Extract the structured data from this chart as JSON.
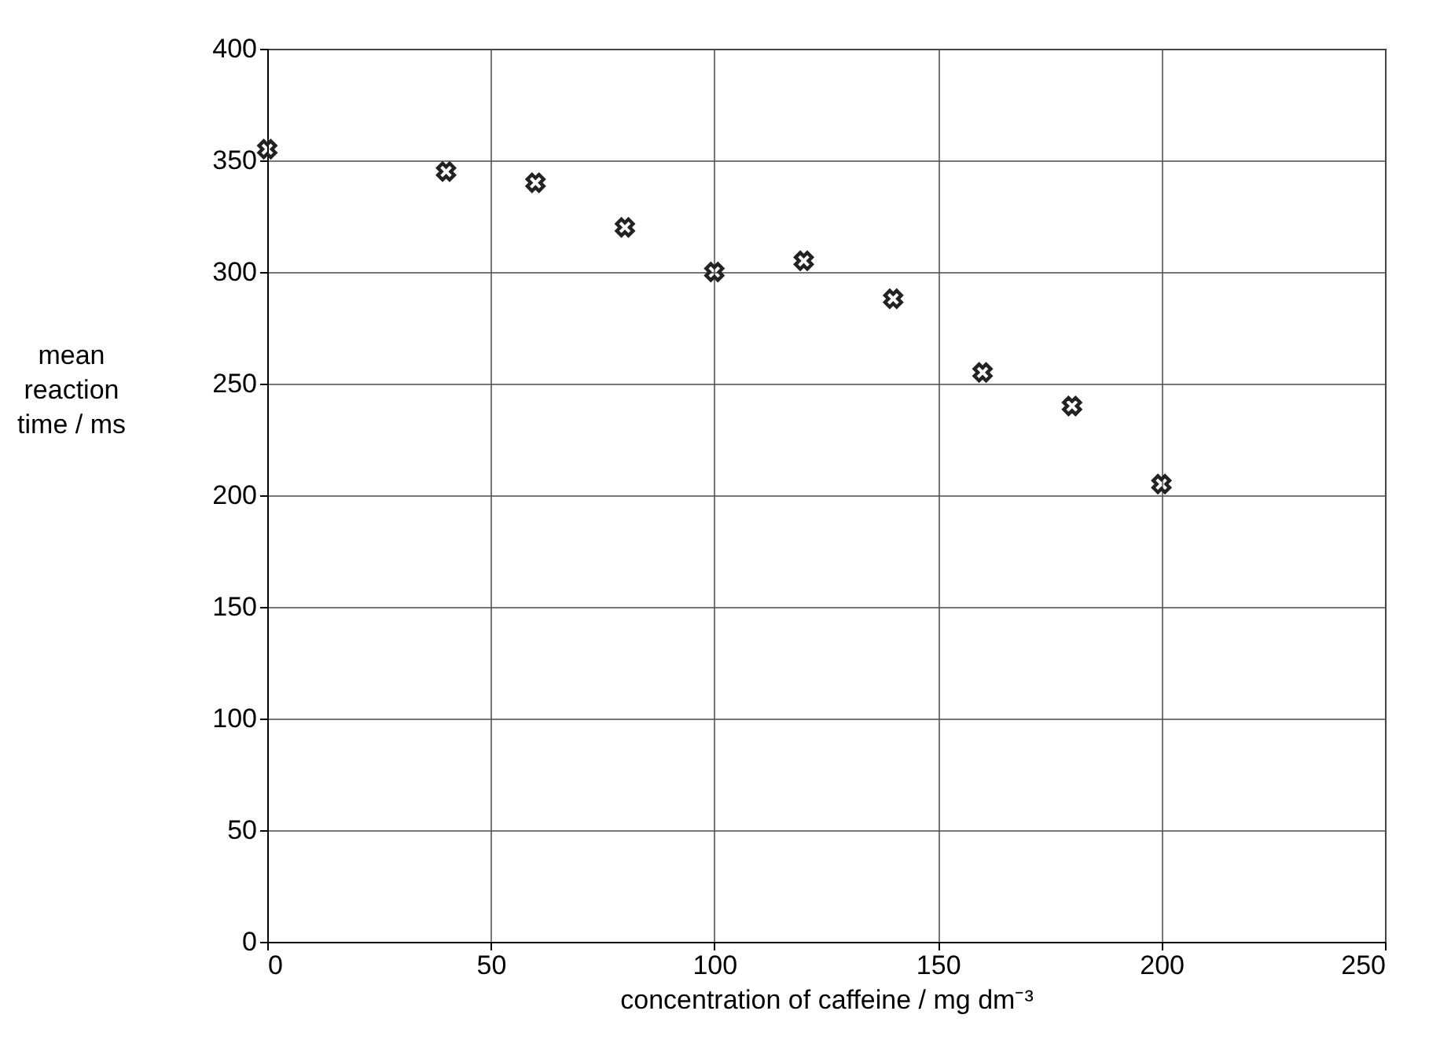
{
  "chart_data": {
    "type": "scatter",
    "xlabel": "concentration of caffeine / mg dm⁻³",
    "ylabel": "mean reaction time / ms",
    "x": [
      0,
      40,
      60,
      80,
      100,
      120,
      140,
      160,
      180,
      200
    ],
    "series": [
      {
        "color": "#222222",
        "values": [
          355,
          345,
          340,
          320,
          300,
          305,
          288,
          255,
          240,
          205
        ]
      }
    ],
    "xlim": [
      0,
      250
    ],
    "xticks": [
      0,
      50,
      100,
      150,
      200,
      250
    ],
    "ylim": [
      0,
      400
    ],
    "yticks": [
      0,
      50,
      100,
      150,
      200,
      250,
      300,
      350,
      400
    ],
    "grid": true,
    "marker": "cross"
  }
}
